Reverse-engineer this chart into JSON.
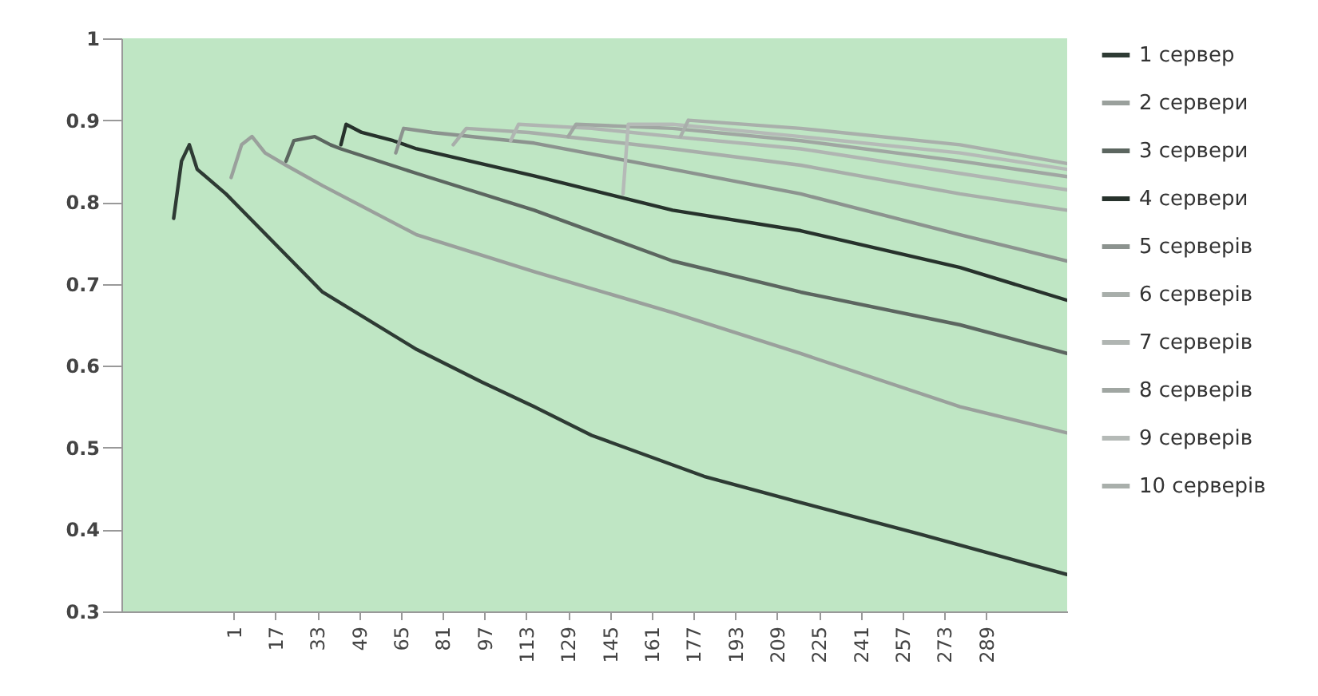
{
  "chart_data": {
    "type": "line",
    "xlim": [
      -42,
      320
    ],
    "xticks": [
      1,
      17,
      33,
      49,
      65,
      81,
      97,
      113,
      129,
      145,
      161,
      177,
      193,
      209,
      225,
      241,
      257,
      273,
      289
    ],
    "ylim": [
      0.3,
      1
    ],
    "yticks": [
      0.3,
      0.4,
      0.5,
      0.6,
      0.7,
      0.8,
      0.9,
      {
        "value": 1,
        "label": "1"
      }
    ],
    "grid": false,
    "legend": "right",
    "marker": "none",
    "line_style": "solid",
    "series": [
      {
        "name": "1 сервер",
        "color": "#2e3b34",
        "x": [
          -22,
          -19,
          -16,
          -13,
          -2,
          35,
          71,
          96,
          116,
          138,
          181,
          218,
          263,
          320
        ],
        "values": [
          0.78,
          0.85,
          0.87,
          0.84,
          0.81,
          0.69,
          0.62,
          0.58,
          0.55,
          0.515,
          0.465,
          0.433,
          0.395,
          0.345
        ]
      },
      {
        "name": "2 сервери",
        "color": "#9aa09c",
        "x": [
          0,
          4,
          8,
          13,
          21,
          35,
          71,
          116,
          169,
          218,
          279,
          320
        ],
        "values": [
          0.83,
          0.87,
          0.88,
          0.86,
          0.845,
          0.82,
          0.76,
          0.715,
          0.665,
          0.615,
          0.55,
          0.518
        ]
      },
      {
        "name": "3 сервери",
        "color": "#5c6660",
        "x": [
          21,
          24,
          32,
          38,
          42,
          71,
          116,
          169,
          218,
          279,
          320
        ],
        "values": [
          0.85,
          0.875,
          0.88,
          0.87,
          0.865,
          0.835,
          0.79,
          0.728,
          0.69,
          0.65,
          0.615
        ]
      },
      {
        "name": "4 сервери",
        "color": "#27322c",
        "x": [
          42,
          44,
          50,
          62,
          71,
          116,
          169,
          218,
          279,
          320
        ],
        "values": [
          0.87,
          0.895,
          0.885,
          0.875,
          0.865,
          0.832,
          0.79,
          0.765,
          0.72,
          0.68
        ]
      },
      {
        "name": "5 серверів",
        "color": "#8c938f",
        "x": [
          63,
          66,
          77,
          116,
          169,
          218,
          279,
          320
        ],
        "values": [
          0.86,
          0.89,
          0.885,
          0.872,
          0.84,
          0.81,
          0.76,
          0.728
        ]
      },
      {
        "name": "6 серверів",
        "color": "#a8aeaa",
        "x": [
          85,
          90,
          114,
          169,
          218,
          279,
          320
        ],
        "values": [
          0.87,
          0.89,
          0.885,
          0.865,
          0.845,
          0.81,
          0.79
        ]
      },
      {
        "name": "7 серверів",
        "color": "#b0b5b2",
        "x": [
          107,
          110,
          138,
          169,
          218,
          279,
          320
        ],
        "values": [
          0.875,
          0.895,
          0.89,
          0.88,
          0.865,
          0.835,
          0.815
        ]
      },
      {
        "name": "8 серверів",
        "color": "#a0a6a2",
        "x": [
          129,
          132,
          169,
          218,
          279,
          320
        ],
        "values": [
          0.88,
          0.895,
          0.89,
          0.875,
          0.85,
          0.831
        ]
      },
      {
        "name": "9 серверів",
        "color": "#b5bab7",
        "x": [
          150,
          152,
          169,
          218,
          279,
          320
        ],
        "values": [
          0.81,
          0.895,
          0.895,
          0.88,
          0.86,
          0.84
        ]
      },
      {
        "name": "10 серверів",
        "color": "#a9afab",
        "x": [
          172,
          175,
          218,
          279,
          320
        ],
        "values": [
          0.88,
          0.9,
          0.89,
          0.87,
          0.847
        ]
      }
    ]
  }
}
